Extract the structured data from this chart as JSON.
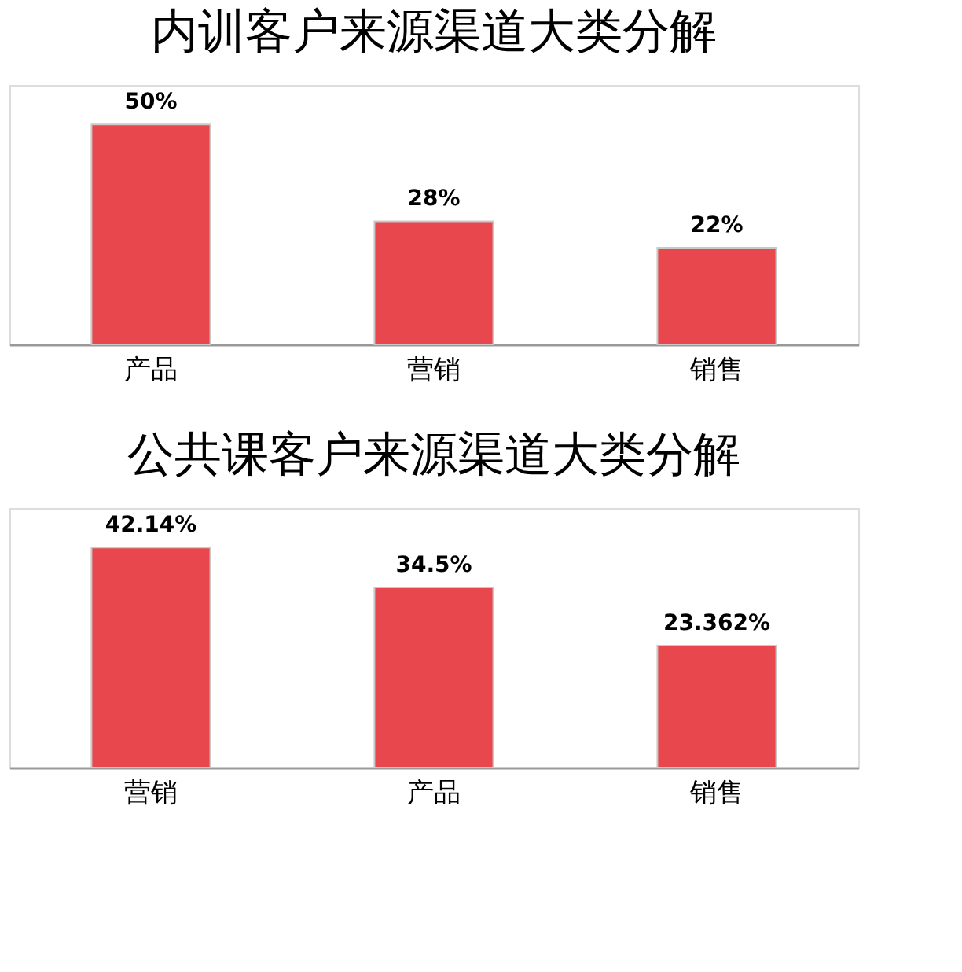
{
  "chart_data": [
    {
      "type": "bar",
      "title": "内训客户来源渠道大类分解",
      "categories": [
        "产品",
        "营销",
        "销售"
      ],
      "values": [
        50,
        28,
        22
      ],
      "value_labels": [
        "50%",
        "28%",
        "22%"
      ],
      "color": "#e8484d",
      "grid": false,
      "tick_labels": "x"
    },
    {
      "type": "bar",
      "title": "公共课客户来源渠道大类分解",
      "categories": [
        "营销",
        "产品",
        "销售"
      ],
      "values": [
        42.14,
        34.5,
        23.362
      ],
      "value_labels": [
        "42.14%",
        "34.5%",
        "23.362%"
      ],
      "color": "#e8484d",
      "grid": false,
      "tick_labels": "x"
    }
  ]
}
